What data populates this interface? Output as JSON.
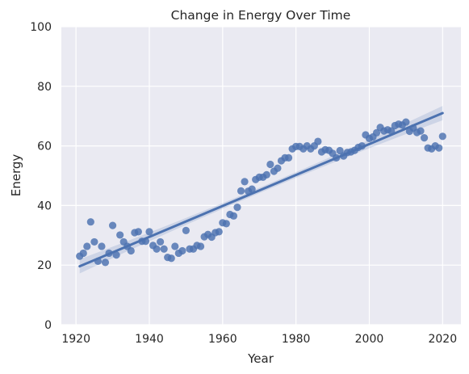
{
  "chart_data": {
    "type": "scatter",
    "title": "Change in Energy Over Time",
    "xlabel": "Year",
    "ylabel": "Energy",
    "xlim": [
      1916,
      2025
    ],
    "ylim": [
      0,
      100
    ],
    "xticks": [
      1920,
      1940,
      1960,
      1980,
      2000,
      2020
    ],
    "yticks": [
      0,
      20,
      40,
      60,
      80,
      100
    ],
    "grid": true,
    "regression": {
      "x_start": 1921,
      "y_start": 19.6,
      "x_end": 2020,
      "y_end": 71.0
    },
    "colors": {
      "points": "#4c72b0",
      "line": "#4c72b0",
      "background": "#eaeaf2",
      "grid": "#ffffff"
    },
    "series": [
      {
        "x": [
          1921,
          1922,
          1923,
          1924,
          1925,
          1926,
          1927,
          1928,
          1929,
          1930,
          1931,
          1932,
          1933,
          1934,
          1935,
          1936,
          1937,
          1938,
          1939,
          1940,
          1941,
          1942,
          1943,
          1944,
          1945,
          1946,
          1947,
          1948,
          1949,
          1950,
          1951,
          1952,
          1953,
          1954,
          1955,
          1956,
          1957,
          1958,
          1959,
          1960,
          1961,
          1962,
          1963,
          1964,
          1965,
          1966,
          1967,
          1968,
          1969,
          1970,
          1971,
          1972,
          1973,
          1974,
          1975,
          1976,
          1977,
          1978,
          1979,
          1980,
          1981,
          1982,
          1983,
          1984,
          1985,
          1986,
          1987,
          1988,
          1989,
          1990,
          1991,
          1992,
          1993,
          1994,
          1995,
          1996,
          1997,
          1998,
          1999,
          2000,
          2001,
          2002,
          2003,
          2004,
          2005,
          2006,
          2007,
          2008,
          2009,
          2010,
          2011,
          2012,
          2013,
          2014,
          2015,
          2016,
          2017,
          2018,
          2019,
          2020
        ],
        "y": [
          23.0,
          24.0,
          26.3,
          34.5,
          27.8,
          21.3,
          26.3,
          20.9,
          24.0,
          33.3,
          23.4,
          30.1,
          27.8,
          26.3,
          24.8,
          30.9,
          31.2,
          28.0,
          28.0,
          31.2,
          26.6,
          25.4,
          27.8,
          25.4,
          22.6,
          22.3,
          26.3,
          24.0,
          24.8,
          31.6,
          25.4,
          25.4,
          26.6,
          26.3,
          29.5,
          30.3,
          29.4,
          30.9,
          31.2,
          34.2,
          33.9,
          37.0,
          36.5,
          39.4,
          44.9,
          48.0,
          44.8,
          45.5,
          48.7,
          49.5,
          49.5,
          50.3,
          53.8,
          51.5,
          52.5,
          55.0,
          56.0,
          56.0,
          59.0,
          59.8,
          59.8,
          59.0,
          60.0,
          59.0,
          60.0,
          61.5,
          58.0,
          58.7,
          58.5,
          57.5,
          56.0,
          58.4,
          56.6,
          57.8,
          58.0,
          58.5,
          59.5,
          60.0,
          63.7,
          62.5,
          63.0,
          64.4,
          66.2,
          65.0,
          65.4,
          65.0,
          66.8,
          67.3,
          67.0,
          68.0,
          64.9,
          66.0,
          64.5,
          65.0,
          62.7,
          59.3,
          59.0,
          60.0,
          59.3,
          63.2
        ]
      }
    ]
  }
}
